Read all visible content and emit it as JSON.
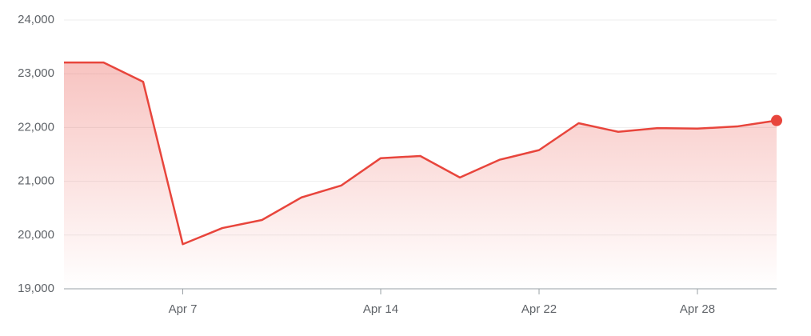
{
  "chart_data": {
    "type": "line",
    "categories": [
      null,
      null,
      null,
      "Apr 7",
      null,
      null,
      null,
      null,
      "Apr 14",
      null,
      null,
      null,
      "Apr 22",
      null,
      null,
      null,
      "Apr 28",
      null,
      null
    ],
    "values": [
      23210,
      23210,
      22850,
      19830,
      20130,
      20280,
      20700,
      20920,
      21430,
      21470,
      21070,
      21400,
      21580,
      22080,
      21920,
      21990,
      21980,
      22020,
      22130
    ],
    "color": "#e8453c",
    "ylim": [
      19000,
      24000
    ],
    "yticks": [
      {
        "value": 19000,
        "label": "19,000"
      },
      {
        "value": 20000,
        "label": "20,000"
      },
      {
        "value": 21000,
        "label": "21,000"
      },
      {
        "value": 22000,
        "label": "22,000"
      },
      {
        "value": 23000,
        "label": "23,000"
      },
      {
        "value": 24000,
        "label": "24,000"
      }
    ],
    "grid": true
  }
}
